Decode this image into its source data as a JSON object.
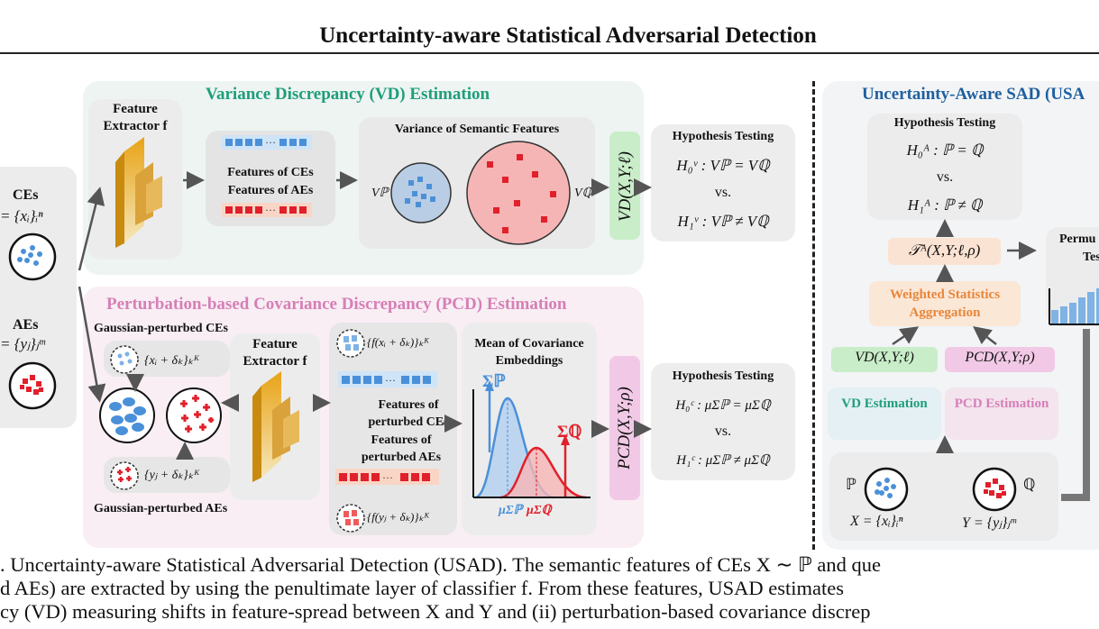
{
  "title": "Uncertainty-aware Statistical Adversarial Detection",
  "vd": {
    "heading": "Variance Discrepancy (VD) Estimation",
    "extractor": "Feature Extractor f",
    "features_ce": "Features of CEs",
    "features_ae": "Features of AEs",
    "variance_title": "Variance of Semantic Features",
    "vp": "Vℙ",
    "vq": "Vℚ",
    "stat": "VD(X,Y;ℓ)",
    "ht_title": "Hypothesis Testing",
    "h0": "H₀ᵛ : Vℙ = Vℚ",
    "vs": "vs.",
    "h1": "H₁ᵛ : Vℙ ≠ Vℚ"
  },
  "inputs": {
    "ces_label": "CEs",
    "ces_set": "= {xᵢ}ᵢⁿ",
    "aes_label": "AEs",
    "aes_set": "= {yⱼ}ⱼᵐ"
  },
  "pcd": {
    "heading": "Perturbation-based Covariance Discrepancy (PCD) Estimation",
    "gauss_ce": "Gaussian-perturbed CEs",
    "gauss_ae": "Gaussian-perturbed AEs",
    "set_x": "{xᵢ + δₖ}ₖᴷ",
    "set_y": "{yⱼ + δₖ}ₖᴷ",
    "extractor": "Feature Extractor f",
    "fx": "{f(xᵢ + δₖ)}ₖᴷ",
    "fy": "{f(yⱼ + δₖ)}ₖᴷ",
    "feat_pce": "Features of perturbed CEs",
    "feat_pae": "Features of perturbed AEs",
    "mean_title": "Mean of Covariance Embeddings",
    "sigma_p": "Σℙ",
    "sigma_q": "Σℚ",
    "mu_p": "μΣℙ",
    "mu_q": "μΣℚ",
    "stat": "PCD(X,Y;ρ)",
    "ht_title": "Hypothesis Testing",
    "h0": "H₀ᶜ : μΣℙ = μΣℚ",
    "vs": "vs.",
    "h1": "H₁ᶜ : μΣℙ ≠ μΣℚ"
  },
  "usad": {
    "heading": "Uncertainty-Aware SAD (USA",
    "ht_title": "Hypothesis Testing",
    "h0": "H₀ᴬ : ℙ = ℚ",
    "vs": "vs.",
    "h1": "H₁ᴬ : ℙ ≠ ℚ",
    "stat": "𝒯ᴬ(X,Y;ℓ,ρ)",
    "perm": "Permu",
    "perm2": "Tes",
    "weighted": "Weighted Statistics Aggregation",
    "vd_stat": "VD(X,Y;ℓ)",
    "pcd_stat": "PCD(X,Y;ρ)",
    "vd_est": "VD Estimation",
    "pcd_est": "PCD Estimation",
    "p_label": "ℙ",
    "q_label": "ℚ",
    "x_set": "X = {xᵢ}ᵢⁿ",
    "y_set": "Y = {yⱼ}ⱼᵐ"
  },
  "caption": {
    "line1": ". Uncertainty-aware Statistical Adversarial Detection (USAD). The semantic features of CEs X ∼ ℙ and que",
    "line2": "d AEs) are extracted by using the penultimate layer of classifier f.  From these features, USAD estimates",
    "line3": "cy (VD) measuring shifts in feature-spread between X and Y and (ii) perturbation-based covariance discrep"
  },
  "colors": {
    "vd_green": "#1e9e7a",
    "pcd_pink": "#d67fb6",
    "usad_blue": "#1f5f9e",
    "blue_dot": "#4a90d9",
    "red_dot": "#e0202a",
    "orange_text": "#e8863a"
  }
}
